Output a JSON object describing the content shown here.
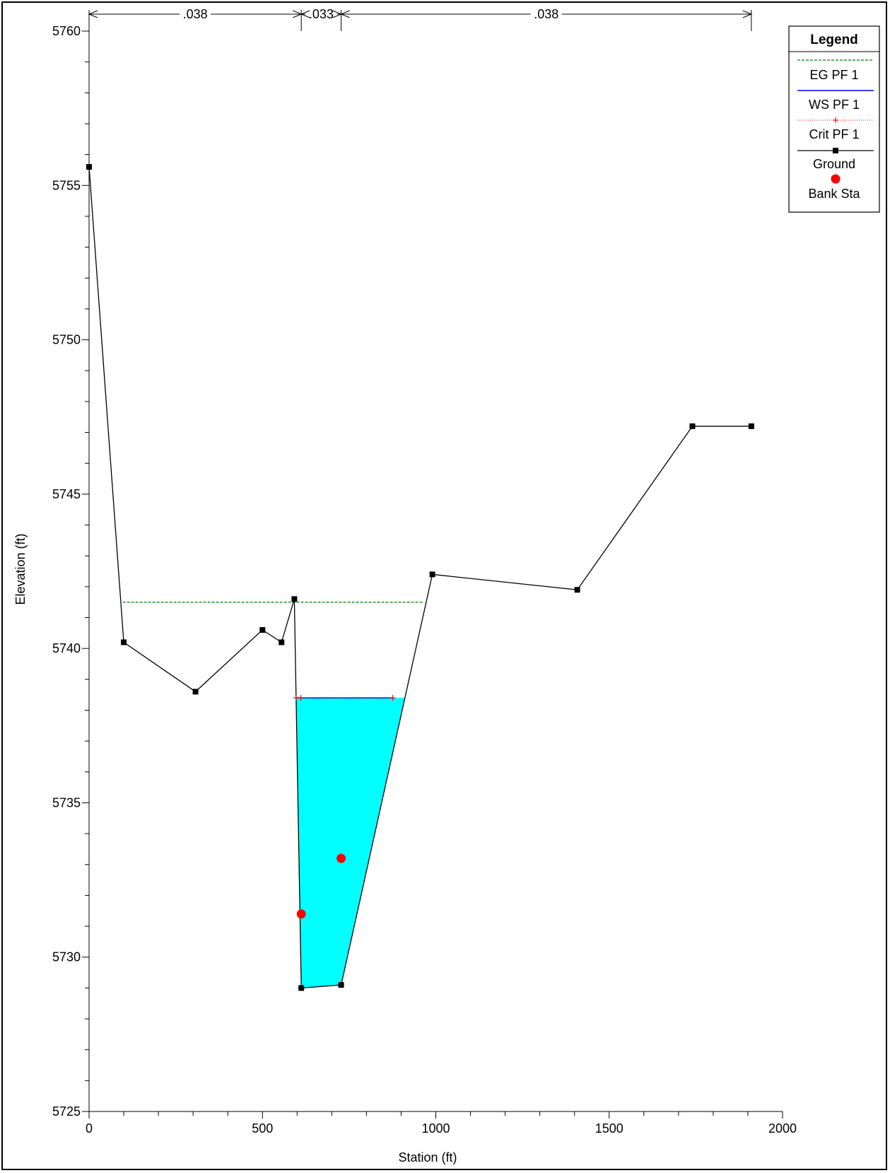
{
  "chart_data": {
    "type": "line",
    "xlabel": "Station (ft)",
    "ylabel": "Elevation (ft)",
    "xlim": [
      0,
      2000
    ],
    "ylim": [
      5725,
      5760
    ],
    "x_ticks": [
      0,
      500,
      1000,
      1500,
      2000
    ],
    "y_ticks": [
      5725,
      5730,
      5735,
      5740,
      5745,
      5750,
      5755,
      5760
    ],
    "x_tick_labels": [
      "0",
      "500",
      "1000",
      "1500",
      "2000"
    ],
    "y_tick_labels": [
      "5725",
      "5730",
      "5735",
      "5740",
      "5745",
      "5750",
      "5755",
      "5760"
    ],
    "legend": {
      "title": "Legend",
      "placement": "top-right",
      "entries": [
        "EG PF 1",
        "WS PF 1",
        "Crit PF 1",
        "Ground",
        "Bank Sta"
      ]
    },
    "mannings_n": {
      "labels": [
        ".038",
        ".033",
        ".038"
      ],
      "breaks": [
        0,
        612,
        727,
        1910
      ]
    },
    "series": [
      {
        "name": "Ground",
        "color": "#000000",
        "marker": "square",
        "x": [
          0,
          100,
          307,
          500,
          555,
          592,
          612,
          727,
          990,
          1408,
          1740,
          1910
        ],
        "y": [
          5755.6,
          5740.2,
          5738.6,
          5740.6,
          5740.2,
          5741.6,
          5729.0,
          5729.1,
          5742.4,
          5741.9,
          5747.2,
          5747.2
        ]
      },
      {
        "name": "EG PF 1",
        "color": "#008000",
        "style": "dashed",
        "x": [
          97,
          966
        ],
        "y": [
          5741.5,
          5741.5
        ]
      },
      {
        "name": "WS PF 1",
        "color": "#0000ff",
        "fill": "#00ffff",
        "x": [
          597,
          876
        ],
        "y": [
          5738.4,
          5738.4
        ]
      },
      {
        "name": "Crit PF 1",
        "color": "#ff0000",
        "style": "dotted",
        "x": [
          597,
          876
        ],
        "y": [
          5738.4,
          5738.4
        ]
      },
      {
        "name": "Bank Sta",
        "color": "#ff0000",
        "marker": "circle",
        "x": [
          612,
          727
        ],
        "y": [
          5731.4,
          5733.2
        ]
      }
    ]
  }
}
